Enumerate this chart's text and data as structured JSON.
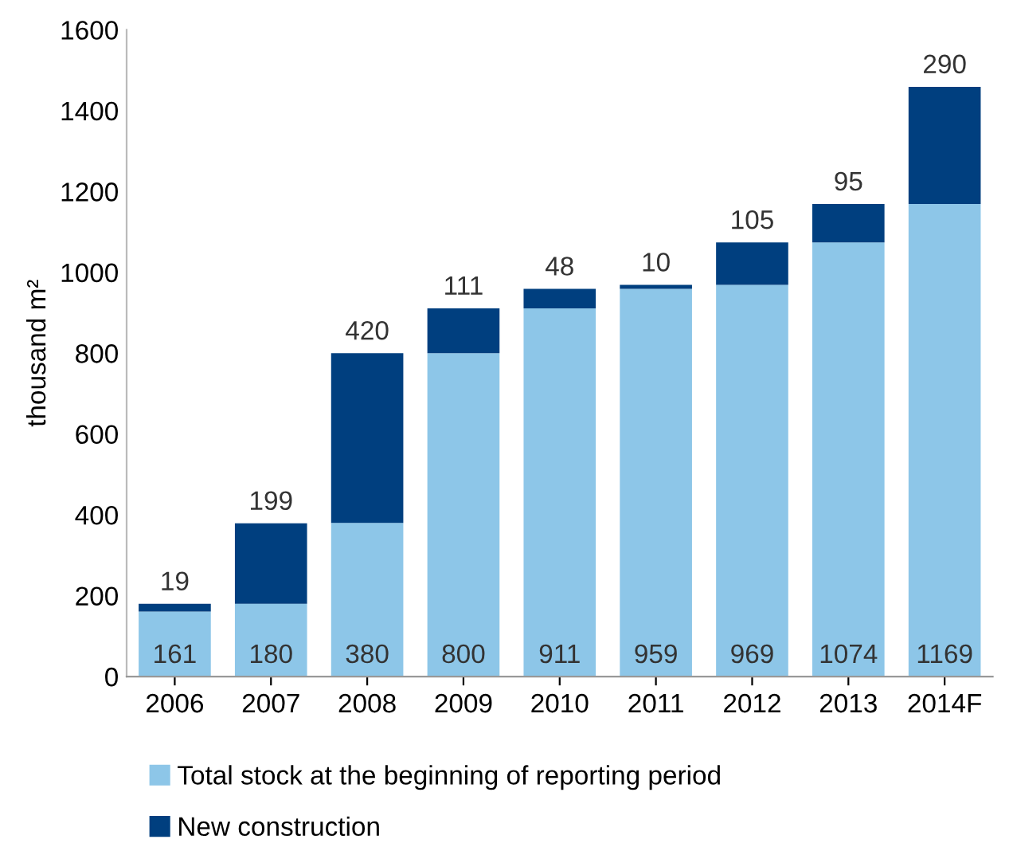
{
  "chart_data": {
    "type": "bar",
    "stacked": true,
    "ylabel": "thousand m²",
    "categories": [
      "2006",
      "2007",
      "2008",
      "2009",
      "2010",
      "2011",
      "2012",
      "2013",
      "2014F"
    ],
    "series": [
      {
        "name": "Total stock at the beginning of reporting period",
        "color": "#8dc6e8",
        "values": [
          161,
          180,
          380,
          800,
          911,
          959,
          969,
          1074,
          1169
        ]
      },
      {
        "name": "New construction",
        "color": "#003f7f",
        "values": [
          19,
          199,
          420,
          111,
          48,
          10,
          105,
          95,
          290
        ]
      }
    ],
    "ylim": [
      0,
      1600
    ],
    "yticks": [
      0,
      200,
      400,
      600,
      800,
      1000,
      1200,
      1400,
      1600
    ],
    "data_labels": true,
    "grid": false,
    "legend": "bottom"
  }
}
